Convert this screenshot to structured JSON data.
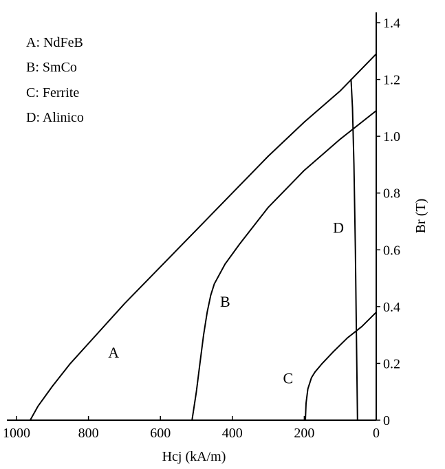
{
  "chart_data": {
    "type": "line",
    "xlabel": "Hcj (kA/m)",
    "ylabel": "Br (T)",
    "x_reversed": true,
    "xlim": [
      1000,
      0
    ],
    "ylim": [
      0,
      1.4
    ],
    "x_ticks": [
      "1000",
      "800",
      "600",
      "400",
      "200",
      "0"
    ],
    "y_ticks": [
      "0",
      "0.2",
      "0.4",
      "0.6",
      "0.8",
      "1.0",
      "1.2",
      "1.4"
    ],
    "y_axis_position": "right",
    "grid": false,
    "legend_position": "top-left",
    "legend": [
      "A: NdFeB",
      "B: SmCo",
      "C: Ferrite",
      "D: Alinico"
    ],
    "series": [
      {
        "name": "A",
        "x": [
          962,
          940,
          900,
          850,
          800,
          700,
          600,
          500,
          400,
          300,
          200,
          100,
          0
        ],
        "y": [
          0.0,
          0.05,
          0.12,
          0.2,
          0.27,
          0.41,
          0.54,
          0.67,
          0.8,
          0.93,
          1.05,
          1.16,
          1.29
        ]
      },
      {
        "name": "B",
        "x": [
          512,
          500,
          490,
          480,
          470,
          460,
          450,
          420,
          380,
          300,
          200,
          100,
          0
        ],
        "y": [
          0.0,
          0.1,
          0.2,
          0.3,
          0.38,
          0.44,
          0.48,
          0.55,
          0.62,
          0.75,
          0.88,
          0.99,
          1.09
        ]
      },
      {
        "name": "C",
        "x": [
          197,
          195,
          190,
          180,
          170,
          150,
          120,
          80,
          40,
          0
        ],
        "y": [
          0.0,
          0.06,
          0.11,
          0.15,
          0.17,
          0.2,
          0.24,
          0.29,
          0.33,
          0.38
        ]
      },
      {
        "name": "D",
        "x": [
          52,
          55,
          58,
          62,
          66,
          70
        ],
        "y": [
          0.0,
          0.3,
          0.6,
          0.9,
          1.1,
          1.2
        ]
      }
    ],
    "curve_labels": [
      {
        "text": "A",
        "x": 730,
        "y": 0.22
      },
      {
        "text": "B",
        "x": 420,
        "y": 0.4
      },
      {
        "text": "C",
        "x": 245,
        "y": 0.13
      },
      {
        "text": "D",
        "x": 105,
        "y": 0.66
      }
    ]
  }
}
